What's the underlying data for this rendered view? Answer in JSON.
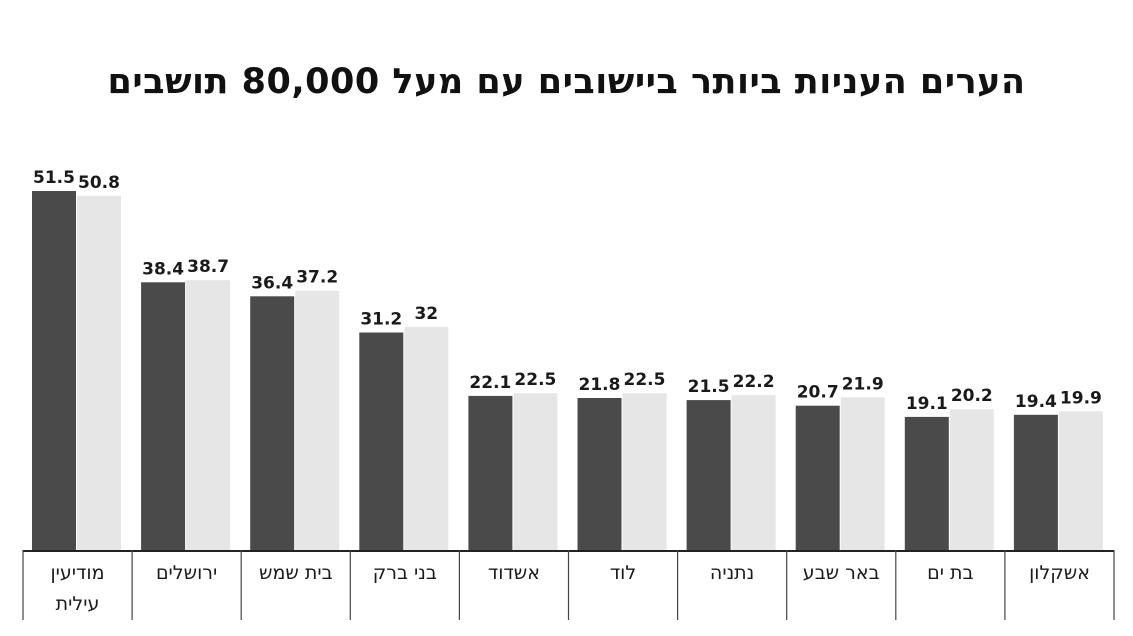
{
  "chart_data": {
    "type": "bar",
    "title": "הערים העניות ביותר ביישובים עם מעל 80,000 תושבים",
    "categories": [
      [
        "מודיעין",
        "עילית"
      ],
      [
        "ירושלים"
      ],
      [
        "בית שמש"
      ],
      [
        "בני ברק"
      ],
      [
        "אשדוד"
      ],
      [
        "לוד"
      ],
      [
        "נתניה"
      ],
      [
        "באר שבע"
      ],
      [
        "בת ים"
      ],
      [
        "אשקלון"
      ]
    ],
    "series": [
      {
        "name": "dark",
        "color": "#4a4a4a",
        "values": [
          51.5,
          38.4,
          36.4,
          31.2,
          22.1,
          21.8,
          21.5,
          20.7,
          19.1,
          19.4
        ],
        "labels": [
          "51.5",
          "38.4",
          "36.4",
          "31.2",
          "22.1",
          "21.8",
          "21.5",
          "20.7",
          "19.1",
          "19.4"
        ]
      },
      {
        "name": "light",
        "color": "#e6e6e6",
        "values": [
          50.8,
          38.7,
          37.2,
          32,
          22.5,
          22.5,
          22.2,
          21.9,
          20.2,
          19.9
        ],
        "labels": [
          "50.8",
          "38.7",
          "37.2",
          "32",
          "22.5",
          "22.5",
          "22.2",
          "21.9",
          "20.2",
          "19.9"
        ]
      }
    ],
    "ylim": [
      0,
      51.5
    ],
    "xlabel": "",
    "ylabel": ""
  }
}
